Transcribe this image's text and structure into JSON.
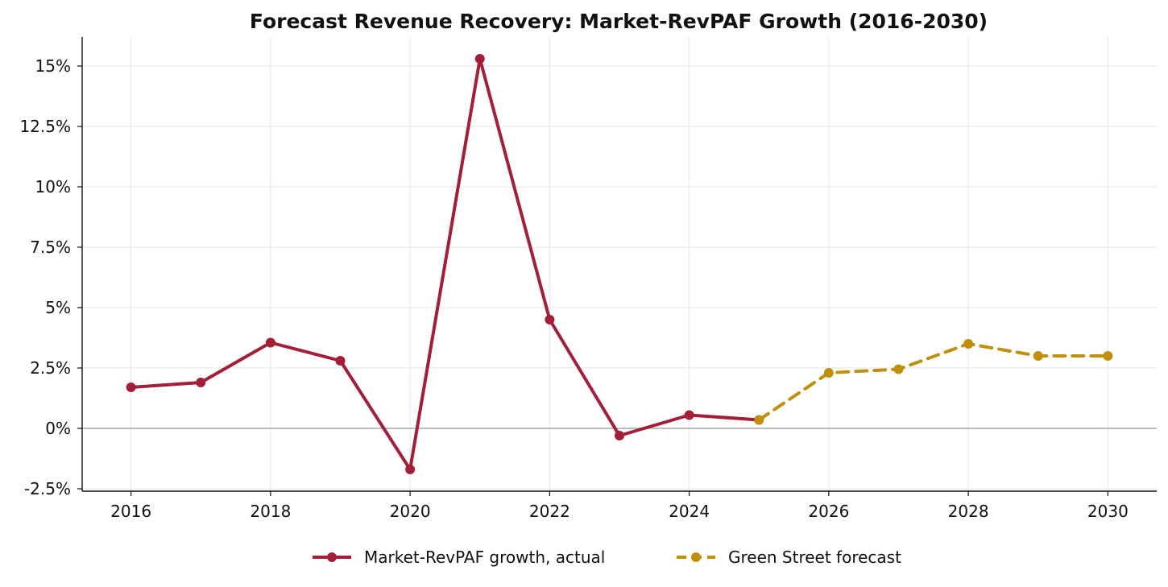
{
  "chart_data": {
    "type": "line",
    "title": "Forecast Revenue Recovery: Market-RevPAF Growth (2016-2030)",
    "xlabel": "",
    "ylabel": "",
    "xlim": [
      2015.3,
      2030.7
    ],
    "ylim": [
      -2.6,
      16.2
    ],
    "x_ticks": [
      2016,
      2018,
      2020,
      2022,
      2024,
      2026,
      2028,
      2030
    ],
    "x_tick_labels": [
      "2016",
      "2018",
      "2020",
      "2022",
      "2024",
      "2026",
      "2028",
      "2030"
    ],
    "y_ticks": [
      -2.5,
      0,
      2.5,
      5,
      7.5,
      10,
      12.5,
      15
    ],
    "y_tick_labels": [
      "-2.5%",
      "0%",
      "2.5%",
      "5%",
      "7.5%",
      "10%",
      "12.5%",
      "15%"
    ],
    "grid": true,
    "zero_line": true,
    "legend_position": "bottom-center",
    "series": [
      {
        "name": "Market-RevPAF growth, actual",
        "color": "#a31f37",
        "style": "solid",
        "x": [
          2016,
          2017,
          2018,
          2019,
          2020,
          2021,
          2022,
          2023,
          2024,
          2025
        ],
        "y": [
          1.7,
          1.9,
          3.55,
          2.8,
          -1.7,
          15.3,
          4.5,
          -0.3,
          0.55,
          0.35
        ]
      },
      {
        "name": "Green Street forecast",
        "color": "#c0900d",
        "style": "dashed",
        "x": [
          2025,
          2026,
          2027,
          2028,
          2029,
          2030
        ],
        "y": [
          0.35,
          2.3,
          2.45,
          3.5,
          3.0,
          3.0
        ]
      }
    ]
  }
}
